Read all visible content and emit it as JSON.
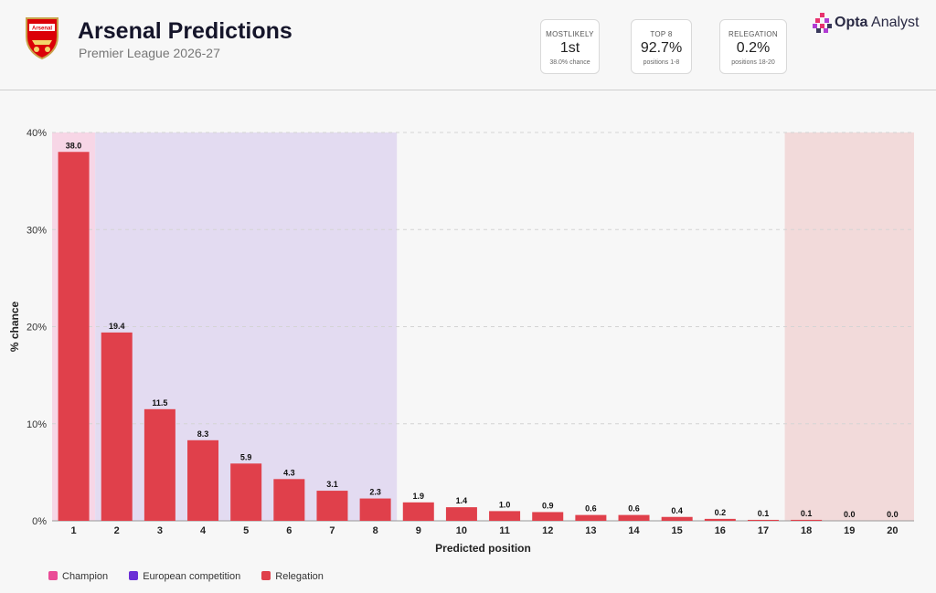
{
  "header": {
    "crest_text": "Arsenal",
    "title": "Arsenal Predictions",
    "subtitle": "Premier League 2026-27"
  },
  "cards": [
    {
      "label": "MOSTLIKELY",
      "value": "1st",
      "sub": "38.0% chance"
    },
    {
      "label": "TOP 8",
      "value": "92.7%",
      "sub": "positions   1-8"
    },
    {
      "label": "RELEGATION",
      "value": "0.2%",
      "sub": "positions   18-20"
    }
  ],
  "brand": {
    "bold": "Opta",
    "rest": " Analyst",
    "colors": [
      "#e8336e",
      "#b13dd3",
      "#3a3a5c"
    ]
  },
  "colors": {
    "bar": "#e0404b",
    "champion_zone": "#f7d6e6",
    "europe_zone": "#e3dbf1",
    "relegation_zone": "#f2dada",
    "champion_swatch": "#ea4c97",
    "europe_swatch": "#6b2fd6",
    "relegation_swatch": "#e0404b"
  },
  "chart_data": {
    "type": "bar",
    "categories": [
      "1",
      "2",
      "3",
      "4",
      "5",
      "6",
      "7",
      "8",
      "9",
      "10",
      "11",
      "12",
      "13",
      "14",
      "15",
      "16",
      "17",
      "18",
      "19",
      "20"
    ],
    "values": [
      38.0,
      19.4,
      11.5,
      8.3,
      5.9,
      4.3,
      3.1,
      2.3,
      1.9,
      1.4,
      1.0,
      0.9,
      0.6,
      0.6,
      0.4,
      0.2,
      0.1,
      0.1,
      0.0,
      0.0
    ],
    "value_labels": [
      "38.0",
      "19.4",
      "11.5",
      "8.3",
      "5.9",
      "4.3",
      "3.1",
      "2.3",
      "1.9",
      "1.4",
      "1.0",
      "0.9",
      "0.6",
      "0.6",
      "0.4",
      "0.2",
      "0.1",
      "0.1",
      "0.0",
      "0.0"
    ],
    "xlabel": "Predicted position",
    "ylabel": "% chance",
    "ylim": [
      0,
      40
    ],
    "yticks": [
      0,
      10,
      20,
      30,
      40
    ],
    "ytick_labels": [
      "0%",
      "10%",
      "20%",
      "30%",
      "40%"
    ],
    "grid": true,
    "zones": [
      {
        "name": "Champion",
        "from": 1,
        "to": 1
      },
      {
        "name": "European competition",
        "from": 2,
        "to": 8
      },
      {
        "name": "Relegation",
        "from": 18,
        "to": 20
      }
    ],
    "legend_position": "bottom-left"
  },
  "legend": [
    {
      "label": "Champion"
    },
    {
      "label": "European competition"
    },
    {
      "label": "Relegation"
    }
  ]
}
